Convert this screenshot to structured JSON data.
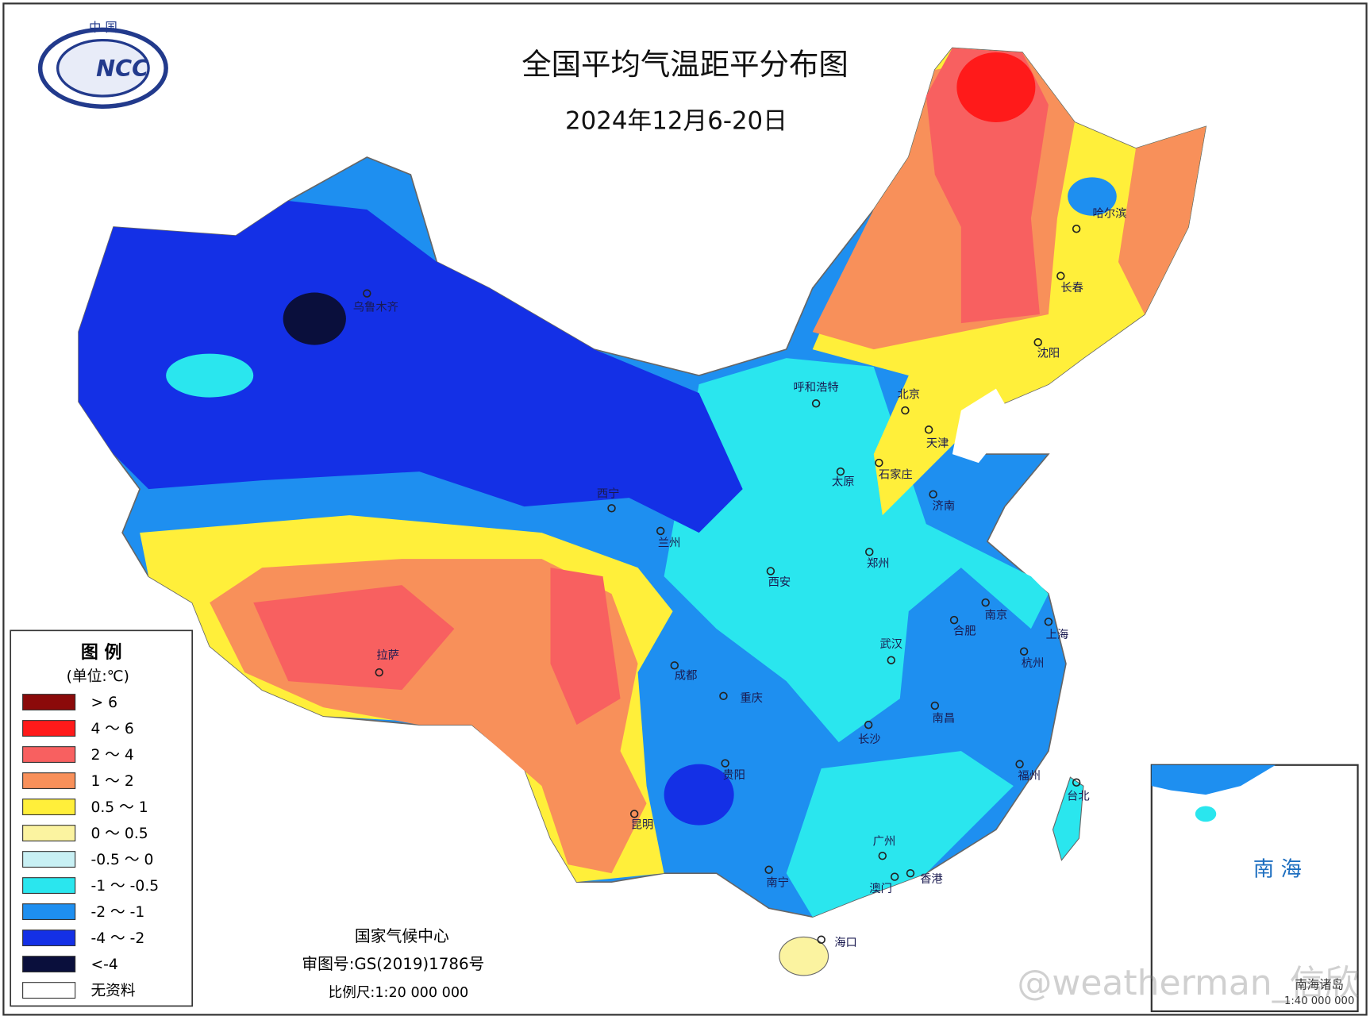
{
  "header": {
    "title": "全国平均气温距平分布图",
    "subtitle": "2024年12月6-20日",
    "logo_top": "中 国",
    "logo_text": "NCC"
  },
  "legend": {
    "title": "图 例",
    "unit": "(单位:℃)",
    "items": [
      {
        "label": "> 6",
        "color": "#8b0a0a"
      },
      {
        "label": "4 ～ 6",
        "color": "#ff1a1a"
      },
      {
        "label": "2 ～ 4",
        "color": "#f86060"
      },
      {
        "label": "1 ～ 2",
        "color": "#f8905a"
      },
      {
        "label": "0.5 ～ 1",
        "color": "#ffef3a"
      },
      {
        "label": "0 ～ 0.5",
        "color": "#fbf3a0"
      },
      {
        "label": "-0.5 ～ 0",
        "color": "#c8f0f4"
      },
      {
        "label": "-1 ～ -0.5",
        "color": "#2ae6ee"
      },
      {
        "label": "-2 ～ -1",
        "color": "#1e8ff0"
      },
      {
        "label": "-4 ～ -2",
        "color": "#1430e6"
      },
      {
        "label": "<-4",
        "color": "#0a0f3c"
      },
      {
        "label": "无资料",
        "color": "#ffffff"
      }
    ]
  },
  "cities": [
    "乌鲁木齐",
    "呼和浩特",
    "北京",
    "天津",
    "石家庄",
    "太原",
    "济南",
    "西宁",
    "兰州",
    "郑州",
    "西安",
    "南京",
    "合肥",
    "上海",
    "武汉",
    "杭州",
    "成都",
    "拉萨",
    "重庆",
    "南昌",
    "长沙",
    "福州",
    "贵阳",
    "台北",
    "昆明",
    "广州",
    "南宁",
    "澳门",
    "香港",
    "海口",
    "哈尔滨",
    "长春",
    "沈阳"
  ],
  "footer": {
    "org": "国家气候中心",
    "approval": "审图号:GS(2019)1786号",
    "scale": "比例尺:1:20 000 000"
  },
  "inset": {
    "label": "南 海",
    "note": "南海诸岛",
    "scale": "1:40 000 000"
  },
  "watermark": "@weatherman_信欣"
}
